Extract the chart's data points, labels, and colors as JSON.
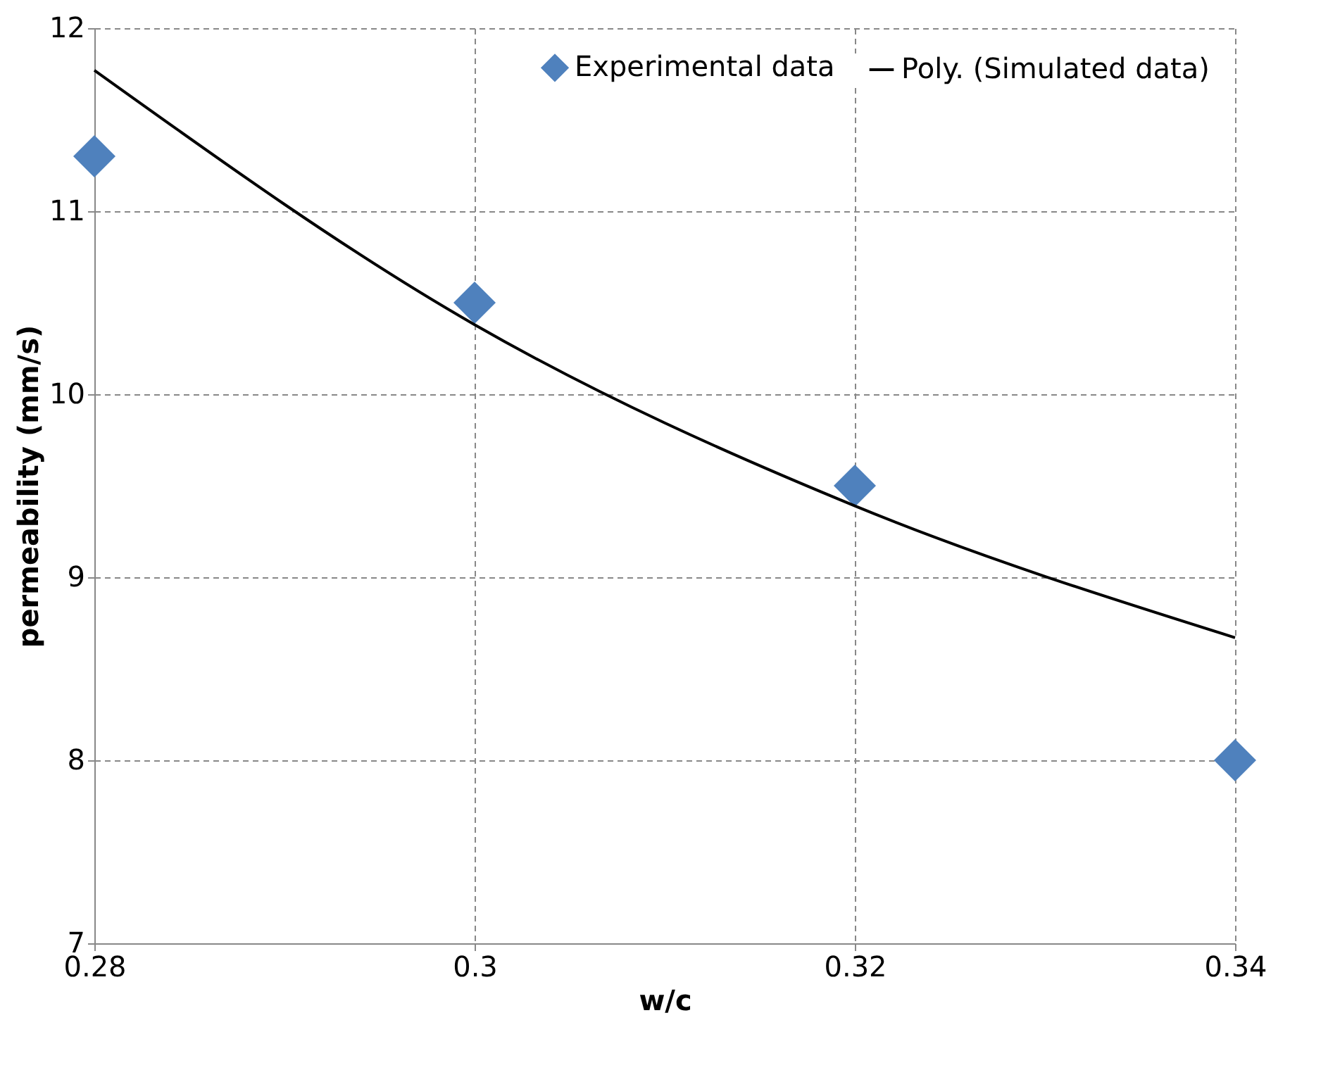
{
  "chart_data": {
    "type": "scatter",
    "xlabel": "w/c",
    "ylabel": "permeability (mm/s)",
    "xlim": [
      0.28,
      0.34
    ],
    "xticks": [
      0.28,
      0.3,
      0.32,
      0.34
    ],
    "ylim": [
      7,
      12
    ],
    "yticks": [
      7,
      8,
      9,
      10,
      11,
      12
    ],
    "grid": true,
    "legend": "top right",
    "series": [
      {
        "name": "Experimental data",
        "type": "scatter",
        "marker": "diamond",
        "color": "#4f81bd",
        "x": [
          0.28,
          0.3,
          0.32,
          0.34
        ],
        "values": [
          11.3,
          10.5,
          9.5,
          8.0
        ]
      },
      {
        "name": "Poly. (Simulated data)",
        "type": "line",
        "marker": "none",
        "line_style": "solid",
        "color": "#000000",
        "x": [
          0.28,
          0.3,
          0.32,
          0.34
        ],
        "values": [
          11.77,
          10.38,
          9.39,
          8.67
        ]
      }
    ]
  }
}
